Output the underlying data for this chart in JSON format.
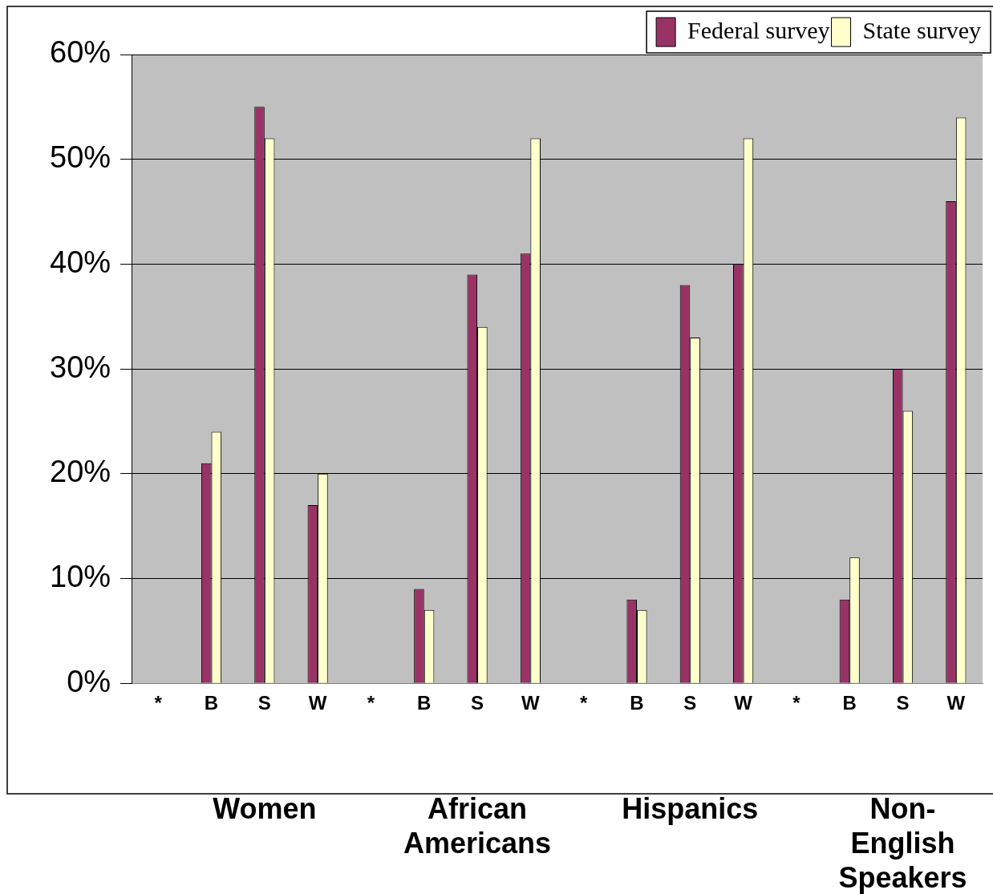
{
  "chart_data": {
    "type": "bar",
    "categories": [
      "*",
      "B",
      "S",
      "W",
      "*",
      "B",
      "S",
      "W",
      "*",
      "B",
      "S",
      "W",
      "*",
      "B",
      "S",
      "W"
    ],
    "series": [
      {
        "name": "Federal survey",
        "color": "#993366",
        "values": [
          null,
          21,
          55,
          17,
          null,
          9,
          39,
          41,
          null,
          8,
          38,
          40,
          null,
          8,
          30,
          46
        ]
      },
      {
        "name": "State survey",
        "color": "#ffffcc",
        "values": [
          null,
          24,
          52,
          20,
          null,
          7,
          34,
          52,
          null,
          7,
          33,
          52,
          null,
          12,
          26,
          54
        ]
      }
    ],
    "ylim": [
      0,
      60
    ],
    "yticks": [
      {
        "value": 0,
        "label": "0%"
      },
      {
        "value": 10,
        "label": "10%"
      },
      {
        "value": 20,
        "label": "20%"
      },
      {
        "value": 30,
        "label": "30%"
      },
      {
        "value": 40,
        "label": "40%"
      },
      {
        "value": 50,
        "label": "50%"
      },
      {
        "value": 60,
        "label": "60%"
      }
    ],
    "annotations": [
      "Women",
      "African Americans",
      "Hispanics",
      "Non-English Speakers"
    ],
    "grid": "y",
    "legend": "top right"
  }
}
